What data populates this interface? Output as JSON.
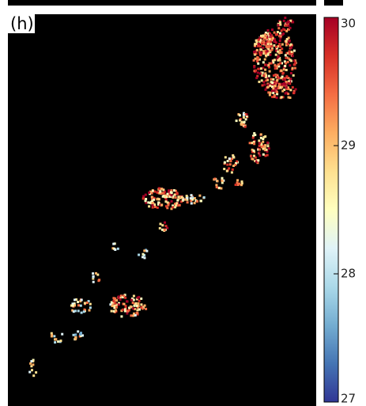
{
  "panel_label": "(h)",
  "colorbar": {
    "clim": [
      27,
      30
    ],
    "ticks": [
      27,
      28,
      29,
      30
    ],
    "colors": [
      "#313695",
      "#4575b4",
      "#74add1",
      "#abd9e9",
      "#e0f3f8",
      "#ffffbf",
      "#fee090",
      "#fdae61",
      "#f46d43",
      "#d73027",
      "#a50026"
    ]
  }
}
